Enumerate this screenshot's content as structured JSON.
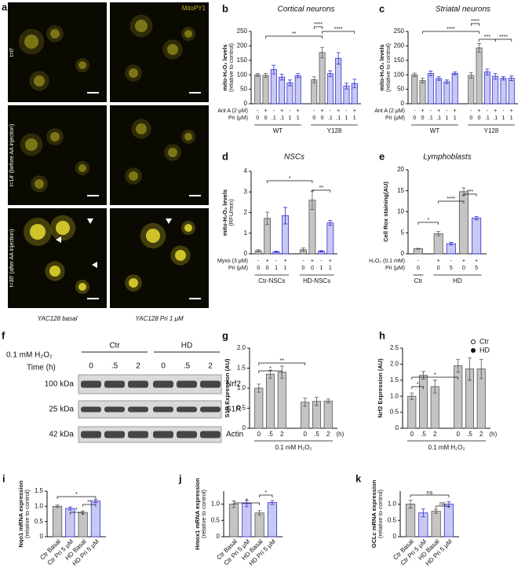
{
  "panels": {
    "a": {
      "letter": "a",
      "channel": "MitoPY1",
      "rows": [
        "t=0'",
        "t=14'  (before AA injection)",
        "t=30'  (after AA injection)"
      ],
      "columns": [
        "YAC128 basal",
        "YAC128 Pri 1 μM"
      ]
    },
    "f": {
      "letter": "f",
      "treatment": "0.1 mM H₂O₂",
      "time_label": "Time (h)",
      "groups": [
        "Ctr",
        "HD"
      ],
      "times": [
        "0",
        ".5",
        "2",
        "0",
        ".5",
        "2"
      ],
      "markers": [
        "100 kDa",
        "25 kDa",
        "42 kDa"
      ],
      "bands": [
        "Nrf2",
        "S1R",
        "Actin"
      ]
    }
  },
  "chart_data": [
    {
      "type": "bar",
      "panel": "b",
      "title": "Cortical neurons",
      "ylabel": "mito-H₂O₂ levels",
      "ylabel2": "(relative to control)",
      "ylim": [
        0,
        250
      ],
      "yticks": [
        0,
        50,
        100,
        150,
        200,
        250
      ],
      "rows": [
        {
          "label": "Ant A (2 μM)",
          "values": [
            "-",
            "+",
            "-",
            "+",
            "-",
            "+",
            "-",
            "+",
            "-",
            "+",
            "-",
            "+"
          ]
        },
        {
          "label": "Pri (μM)",
          "values": [
            "0",
            "0",
            ".1",
            ".1",
            "1",
            "1",
            "0",
            "0",
            ".1",
            ".1",
            "1",
            "1"
          ]
        }
      ],
      "groups": [
        {
          "name": "WT",
          "values": [
            100,
            98,
            118,
            92,
            72,
            97
          ],
          "errors": [
            5,
            7,
            15,
            10,
            10,
            7
          ],
          "colors": [
            "#c4c4c4",
            "#c4c4c4",
            "#c8c8f2",
            "#c8c8f2",
            "#c8c8f2",
            "#c8c8f2"
          ],
          "edges": [
            "#555555",
            "#555555",
            "#3030d0",
            "#3030d0",
            "#3030d0",
            "#3030d0"
          ]
        },
        {
          "name": "Y128",
          "values": [
            83,
            177,
            104,
            157,
            61,
            70
          ],
          "errors": [
            10,
            18,
            10,
            20,
            10,
            15
          ],
          "colors": [
            "#c4c4c4",
            "#c4c4c4",
            "#c8c8f2",
            "#c8c8f2",
            "#c8c8f2",
            "#c8c8f2"
          ],
          "edges": [
            "#555555",
            "#555555",
            "#3030d0",
            "#3030d0",
            "#3030d0",
            "#3030d0"
          ]
        }
      ],
      "annotations": [
        "****",
        "**",
        "****"
      ]
    },
    {
      "type": "bar",
      "panel": "c",
      "title": "Striatal neurons",
      "ylabel": "mito-H₂O₂ levels",
      "ylabel2": "(relative to control)",
      "ylim": [
        0,
        250
      ],
      "yticks": [
        0,
        50,
        100,
        150,
        200,
        250
      ],
      "rows": [
        {
          "label": "Ant A (2 μM)",
          "values": [
            "-",
            "+",
            "-",
            "+",
            "-",
            "+",
            "-",
            "+",
            "-",
            "+",
            "-",
            "+"
          ]
        },
        {
          "label": "Pri (μM)",
          "values": [
            "0",
            "0",
            ".1",
            ".1",
            "1",
            "1",
            "0",
            "0",
            ".1",
            ".1",
            "1",
            "1"
          ]
        }
      ],
      "groups": [
        {
          "name": "WT",
          "values": [
            100,
            80,
            105,
            87,
            76,
            105
          ],
          "errors": [
            6,
            8,
            8,
            6,
            6,
            5
          ],
          "colors": [
            "#c4c4c4",
            "#c4c4c4",
            "#c8c8f2",
            "#c8c8f2",
            "#c8c8f2",
            "#c8c8f2"
          ],
          "edges": [
            "#555555",
            "#555555",
            "#3030d0",
            "#3030d0",
            "#3030d0",
            "#3030d0"
          ]
        },
        {
          "name": "Y128",
          "values": [
            98,
            193,
            110,
            95,
            88,
            88
          ],
          "errors": [
            10,
            15,
            10,
            10,
            6,
            8
          ],
          "colors": [
            "#c4c4c4",
            "#c4c4c4",
            "#c8c8f2",
            "#c8c8f2",
            "#c8c8f2",
            "#c8c8f2"
          ],
          "edges": [
            "#555555",
            "#555555",
            "#3030d0",
            "#3030d0",
            "#3030d0",
            "#3030d0"
          ]
        }
      ],
      "annotations": [
        "****",
        "****",
        "***",
        "****"
      ]
    },
    {
      "type": "bar",
      "panel": "d",
      "title": "NSCs",
      "ylabel": "mito-H₂O₂ levels",
      "ylabel2": "(RFU/min)",
      "ylim": [
        0,
        4
      ],
      "yticks": [
        0,
        1,
        2,
        3,
        4
      ],
      "rows": [
        {
          "label": "Myxo (3 μM)",
          "values": [
            "-",
            "+",
            "-",
            "+",
            "-",
            "+",
            "-",
            "+"
          ]
        },
        {
          "label": "Pri (μM)",
          "values": [
            "0",
            "0",
            "1",
            "1",
            "0",
            "0",
            "1",
            "1"
          ]
        }
      ],
      "groups": [
        {
          "name": "Ctr-NSCs",
          "values": [
            0.15,
            1.72,
            0.1,
            1.85
          ],
          "errors": [
            0.05,
            0.3,
            0.03,
            0.4
          ],
          "colors": [
            "#c4c4c4",
            "#c4c4c4",
            "#c8c8f2",
            "#c8c8f2"
          ],
          "edges": [
            "#555555",
            "#555555",
            "#3030d0",
            "#3030d0"
          ]
        },
        {
          "name": "HD-NSCs",
          "values": [
            0.2,
            2.6,
            0.12,
            1.5
          ],
          "errors": [
            0.08,
            0.45,
            0.03,
            0.12
          ],
          "colors": [
            "#c4c4c4",
            "#c4c4c4",
            "#c8c8f2",
            "#c8c8f2"
          ],
          "edges": [
            "#555555",
            "#555555",
            "#3030d0",
            "#3030d0"
          ]
        }
      ],
      "annotations": [
        "*",
        "**"
      ]
    },
    {
      "type": "bar",
      "panel": "e",
      "title": "Lymphoblasts",
      "ylabel": "Cell Rox staining(AU)",
      "ylim": [
        0,
        20
      ],
      "yticks": [
        0,
        5,
        10,
        15,
        20
      ],
      "rows": [
        {
          "label": "H₂O₂ (0.1 mM)",
          "values": [
            "-",
            "+",
            "-",
            "+",
            "+"
          ]
        },
        {
          "label": "Pri (μM)",
          "values": [
            "0",
            "0",
            "5",
            "0",
            "5"
          ]
        }
      ],
      "groups": [
        {
          "name": "Ctr",
          "values": [
            1.2
          ],
          "errors": [
            0.1
          ],
          "colors": [
            "#c4c4c4"
          ],
          "edges": [
            "#555555"
          ]
        },
        {
          "name": "HD",
          "values": [
            4.8,
            2.4,
            14.8,
            8.5
          ],
          "errors": [
            0.5,
            0.3,
            0.9,
            0.4
          ],
          "colors": [
            "#c4c4c4",
            "#c8c8f2",
            "#c4c4c4",
            "#c8c8f2"
          ],
          "edges": [
            "#555555",
            "#3030d0",
            "#555555",
            "#3030d0"
          ]
        }
      ],
      "annotations": [
        "*",
        "****",
        "***"
      ]
    },
    {
      "type": "bar",
      "panel": "g",
      "ylabel": "S1R  Expression (AU)",
      "xlabel": "0.1 mM H₂O₂",
      "xunit": "(h)",
      "ylim": [
        0,
        2
      ],
      "yticks": [
        0,
        0.5,
        {
          "value": 1,
          "label": "1.0"
        },
        1.5,
        {
          "value": 2,
          "label": "2.0"
        }
      ],
      "groups": [
        {
          "categories": [
            "0",
            ".5",
            "2"
          ],
          "values": [
            1.0,
            1.35,
            1.4
          ],
          "errors": [
            0.1,
            0.1,
            0.15
          ],
          "colors": [
            "#c4c4c4",
            "#c4c4c4",
            "#c4c4c4"
          ],
          "edges": [
            "#555555",
            "#555555",
            "#555555"
          ]
        },
        {
          "categories": [
            "0",
            ".5",
            "2"
          ],
          "values": [
            0.65,
            0.67,
            0.68
          ],
          "errors": [
            0.1,
            0.1,
            0.05
          ],
          "colors": [
            "#c4c4c4",
            "#c4c4c4",
            "#c4c4c4"
          ],
          "edges": [
            "#555555",
            "#555555",
            "#555555"
          ]
        }
      ],
      "annotations": [
        "*",
        "**"
      ]
    },
    {
      "type": "bar",
      "panel": "h",
      "ylabel": "Nrf2  Expression (AU)",
      "xlabel": "0.1 mM H₂O₂",
      "xunit": "(h)",
      "legend": true,
      "ylim": [
        0,
        2.5
      ],
      "yticks": [
        0,
        0.5,
        {
          "value": 1,
          "label": "1.0"
        },
        1.5,
        {
          "value": 2,
          "label": "2.0"
        },
        2.5
      ],
      "groups": [
        {
          "name": "Ctr",
          "categories": [
            "0",
            ".5",
            "2"
          ],
          "values": [
            1.0,
            1.65,
            1.3
          ],
          "errors": [
            0.1,
            0.12,
            0.2
          ],
          "colors": [
            "#c4c4c4",
            "#c4c4c4",
            "#c4c4c4"
          ],
          "edges": [
            "#555555",
            "#555555",
            "#555555"
          ]
        },
        {
          "name": "HD",
          "categories": [
            "0",
            ".5",
            "2"
          ],
          "values": [
            1.95,
            1.85,
            1.85
          ],
          "errors": [
            0.2,
            0.35,
            0.3
          ],
          "colors": [
            "#c4c4c4",
            "#c4c4c4",
            "#c4c4c4"
          ],
          "edges": [
            "#555555",
            "#555555",
            "#555555"
          ]
        }
      ],
      "annotations": [
        "*",
        "*"
      ]
    },
    {
      "type": "bar",
      "panel": "i",
      "ylabel": "Nqo1 mRNA expression",
      "ylabel2": "(relative to control)",
      "ylim": [
        0,
        1.5
      ],
      "yticks": [
        0,
        0.5,
        {
          "value": 1,
          "label": "1.0"
        },
        1.5
      ],
      "groups": [
        {
          "categories": [
            "Ctr Basal",
            "Ctr Pri 5 μM",
            "HD Basal",
            "HD Pri 5 μM"
          ],
          "values": [
            1.0,
            0.93,
            0.8,
            1.17
          ],
          "errors": [
            0.04,
            0.05,
            0.05,
            0.05
          ],
          "colors": [
            "#c4c4c4",
            "#c8c8f2",
            "#c4c4c4",
            "#c8c8f2"
          ],
          "edges": [
            "#555555",
            "#3030d0",
            "#555555",
            "#3030d0"
          ]
        }
      ],
      "annotations": [
        "*",
        "*",
        "**"
      ]
    },
    {
      "type": "bar",
      "panel": "j",
      "ylabel": "Hmox1 mRNA expression",
      "ylabel2": "(relative to control)",
      "ylim": [
        0,
        1.4
      ],
      "yticks": [
        0,
        0.5,
        {
          "value": 1,
          "label": "1.0"
        }
      ],
      "groups": [
        {
          "categories": [
            "Ctr Basal",
            "Ctr Pri 5 μM",
            "HD Basal",
            "HD Pri 5 μM"
          ],
          "values": [
            1.0,
            1.02,
            0.73,
            1.05
          ],
          "errors": [
            0.1,
            0.1,
            0.07,
            0.06
          ],
          "colors": [
            "#c4c4c4",
            "#c8c8f2",
            "#c4c4c4",
            "#c8c8f2"
          ],
          "edges": [
            "#555555",
            "#3030d0",
            "#555555",
            "#3030d0"
          ]
        }
      ],
      "annotations": [
        "*",
        "*"
      ]
    },
    {
      "type": "bar",
      "panel": "k",
      "ylabel": "GCLc mRNA expression",
      "ylabel2": "(relative to control)",
      "ylim": [
        0,
        1.4
      ],
      "yticks": [
        0,
        0.5,
        {
          "value": 1,
          "label": "1.0"
        }
      ],
      "groups": [
        {
          "categories": [
            "Ctr Basal",
            "Ctr Pri 5 μM",
            "HD Basal",
            "HD Pri 5 μM"
          ],
          "values": [
            1.0,
            0.73,
            0.78,
            1.0
          ],
          "errors": [
            0.12,
            0.12,
            0.06,
            0.07
          ],
          "colors": [
            "#c4c4c4",
            "#c8c8f2",
            "#c4c4c4",
            "#c8c8f2"
          ],
          "edges": [
            "#555555",
            "#3030d0",
            "#555555",
            "#3030d0"
          ]
        }
      ],
      "annotations": [
        "ns",
        "ns"
      ]
    }
  ]
}
